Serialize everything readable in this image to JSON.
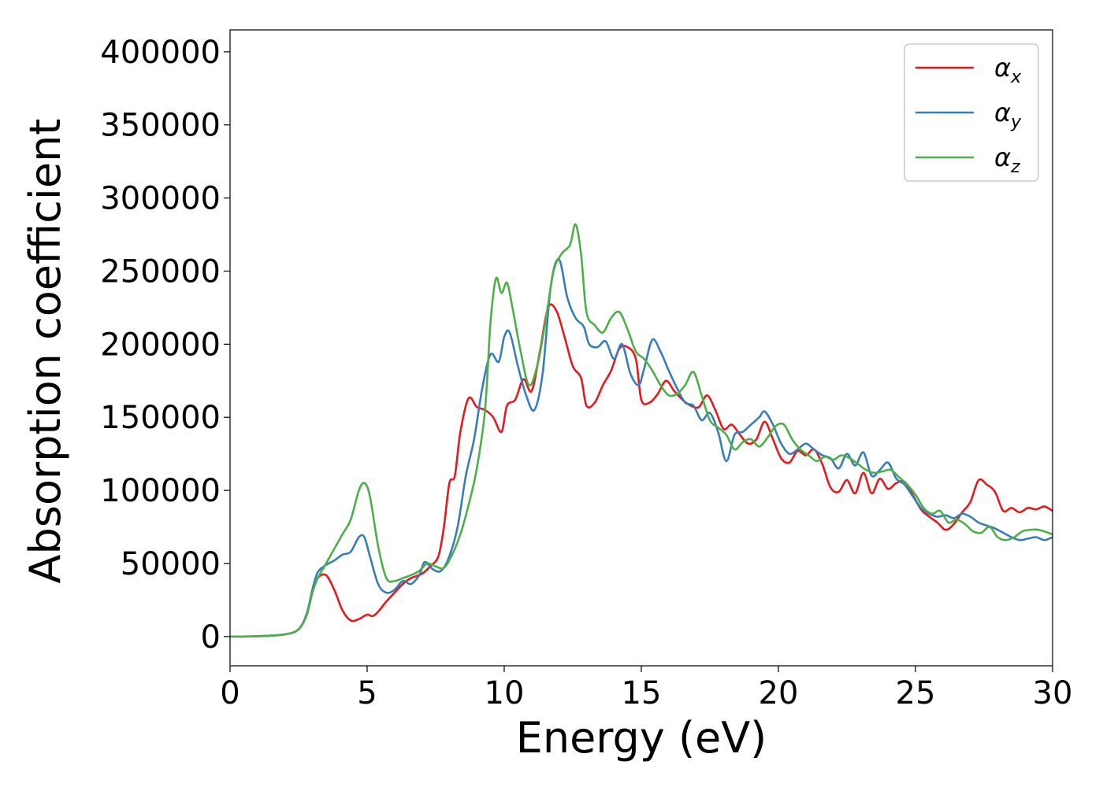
{
  "chart_data": {
    "type": "line",
    "title": "",
    "xlabel": "Energy (eV)",
    "ylabel": "Absorption coefficient",
    "xlim": [
      0,
      30
    ],
    "ylim": [
      -20000,
      415000
    ],
    "xticks": [
      0,
      5,
      10,
      15,
      20,
      25,
      30
    ],
    "yticks": [
      0,
      50000,
      100000,
      150000,
      200000,
      250000,
      300000,
      350000,
      400000
    ],
    "grid": false,
    "legend_position": "top-right",
    "series": [
      {
        "name": "α_x",
        "label_base": "α",
        "label_sub": "x",
        "color": "#e41a1c",
        "x": [
          0,
          1,
          2,
          2.5,
          2.8,
          3.0,
          3.2,
          3.5,
          3.8,
          4.1,
          4.4,
          4.7,
          5.0,
          5.2,
          5.4,
          5.7,
          6.0,
          6.3,
          6.6,
          7.0,
          7.3,
          7.6,
          7.8,
          8.0,
          8.2,
          8.4,
          8.7,
          9.0,
          9.3,
          9.6,
          9.9,
          10.1,
          10.4,
          10.7,
          11.0,
          11.3,
          11.6,
          11.9,
          12.2,
          12.5,
          12.8,
          13.0,
          13.3,
          13.6,
          13.9,
          14.2,
          14.5,
          14.8,
          15.0,
          15.3,
          15.6,
          15.9,
          16.2,
          16.5,
          16.8,
          17.1,
          17.4,
          17.7,
          18.0,
          18.3,
          18.6,
          18.9,
          19.2,
          19.5,
          19.8,
          20.1,
          20.4,
          20.7,
          21.0,
          21.3,
          21.6,
          21.9,
          22.2,
          22.5,
          22.8,
          23.1,
          23.4,
          23.7,
          24.0,
          24.3,
          24.6,
          24.9,
          25.2,
          25.5,
          25.8,
          26.1,
          26.4,
          26.7,
          27.0,
          27.3,
          27.6,
          27.9,
          28.2,
          28.5,
          28.8,
          29.1,
          29.4,
          29.7,
          30.0
        ],
        "y": [
          0,
          200,
          1500,
          5000,
          15000,
          30000,
          40000,
          42000,
          32000,
          18000,
          11000,
          12000,
          15000,
          14000,
          17000,
          24000,
          30000,
          36000,
          40000,
          43000,
          48000,
          55000,
          75000,
          105000,
          110000,
          140000,
          163000,
          157000,
          155000,
          150000,
          140000,
          158000,
          162000,
          176000,
          168000,
          195000,
          225000,
          223000,
          205000,
          185000,
          177000,
          158000,
          160000,
          172000,
          182000,
          197000,
          198000,
          190000,
          162000,
          160000,
          166000,
          175000,
          168000,
          162000,
          158000,
          157000,
          165000,
          155000,
          142000,
          145000,
          138000,
          132000,
          135000,
          147000,
          135000,
          122000,
          119000,
          127000,
          124000,
          128000,
          118000,
          102000,
          99000,
          107000,
          98000,
          112000,
          98000,
          108000,
          101000,
          105000,
          106000,
          97000,
          87000,
          82000,
          78000,
          73000,
          77000,
          85000,
          92000,
          107000,
          104000,
          99000,
          86000,
          88000,
          85000,
          88000,
          87000,
          89000,
          86000
        ]
      },
      {
        "name": "α_y",
        "label_base": "α",
        "label_sub": "y",
        "color": "#377eb8",
        "x": [
          0,
          1,
          2,
          2.5,
          2.8,
          3.0,
          3.2,
          3.5,
          3.8,
          4.1,
          4.4,
          4.7,
          4.9,
          5.1,
          5.4,
          5.7,
          6.0,
          6.3,
          6.6,
          6.9,
          7.1,
          7.4,
          7.7,
          8.0,
          8.3,
          8.6,
          8.9,
          9.2,
          9.5,
          9.8,
          10.0,
          10.2,
          10.5,
          10.8,
          11.1,
          11.4,
          11.7,
          12.0,
          12.3,
          12.6,
          12.9,
          13.1,
          13.4,
          13.7,
          14.0,
          14.3,
          14.6,
          14.9,
          15.1,
          15.4,
          15.7,
          16.0,
          16.3,
          16.6,
          16.9,
          17.2,
          17.5,
          17.8,
          18.1,
          18.4,
          18.7,
          19.0,
          19.3,
          19.5,
          19.8,
          20.1,
          20.4,
          20.7,
          21.0,
          21.3,
          21.6,
          21.9,
          22.2,
          22.5,
          22.8,
          23.1,
          23.4,
          23.7,
          24.0,
          24.3,
          24.6,
          24.9,
          25.2,
          25.5,
          25.8,
          26.1,
          26.4,
          26.7,
          27.0,
          27.3,
          27.6,
          27.9,
          28.2,
          28.5,
          28.8,
          29.1,
          29.4,
          29.7,
          30.0
        ],
        "y": [
          0,
          200,
          1500,
          5000,
          16000,
          32000,
          44000,
          49000,
          52000,
          56000,
          58000,
          68000,
          68000,
          55000,
          36000,
          30000,
          32000,
          38000,
          36000,
          42000,
          51000,
          46000,
          45000,
          55000,
          75000,
          110000,
          135000,
          170000,
          193000,
          188000,
          205000,
          208000,
          185000,
          165000,
          155000,
          180000,
          240000,
          258000,
          232000,
          218000,
          212000,
          200000,
          198000,
          202000,
          190000,
          200000,
          180000,
          172000,
          183000,
          203000,
          195000,
          182000,
          170000,
          160000,
          158000,
          148000,
          153000,
          140000,
          120000,
          138000,
          140000,
          145000,
          150000,
          154000,
          145000,
          132000,
          125000,
          128000,
          132000,
          128000,
          124000,
          122000,
          115000,
          125000,
          117000,
          126000,
          110000,
          114000,
          119000,
          108000,
          104000,
          96000,
          88000,
          84000,
          82000,
          83000,
          81000,
          84000,
          82000,
          78000,
          76000,
          74000,
          71000,
          68000,
          66000,
          67000,
          68000,
          66000,
          68000
        ]
      },
      {
        "name": "α_z",
        "label_base": "α",
        "label_sub": "z",
        "color": "#4daf4a",
        "x": [
          0,
          1,
          2,
          2.5,
          2.8,
          3.0,
          3.2,
          3.5,
          3.8,
          4.1,
          4.4,
          4.7,
          4.9,
          5.1,
          5.4,
          5.7,
          6.0,
          6.3,
          6.6,
          6.9,
          7.2,
          7.5,
          7.8,
          8.1,
          8.4,
          8.7,
          9.0,
          9.3,
          9.5,
          9.7,
          9.9,
          10.1,
          10.3,
          10.6,
          10.9,
          11.2,
          11.5,
          11.8,
          12.1,
          12.4,
          12.6,
          12.8,
          13.0,
          13.3,
          13.6,
          13.9,
          14.2,
          14.5,
          14.8,
          15.1,
          15.4,
          15.7,
          16.0,
          16.3,
          16.6,
          16.9,
          17.2,
          17.5,
          17.8,
          18.1,
          18.4,
          18.7,
          19.0,
          19.3,
          19.6,
          19.9,
          20.2,
          20.5,
          20.8,
          21.1,
          21.4,
          21.7,
          22.0,
          22.3,
          22.6,
          22.9,
          23.2,
          23.5,
          23.8,
          24.1,
          24.4,
          24.7,
          25.0,
          25.3,
          25.6,
          25.9,
          26.2,
          26.5,
          26.8,
          27.1,
          27.4,
          27.7,
          28.0,
          28.3,
          28.6,
          28.9,
          29.2,
          29.5,
          30.0
        ],
        "y": [
          0,
          200,
          1500,
          5000,
          15000,
          30000,
          40000,
          50000,
          60000,
          70000,
          80000,
          100000,
          105000,
          96000,
          62000,
          40000,
          38000,
          40000,
          42000,
          45000,
          50000,
          48000,
          47000,
          56000,
          70000,
          90000,
          115000,
          155000,
          215000,
          245000,
          235000,
          242000,
          225000,
          195000,
          172000,
          185000,
          215000,
          250000,
          262000,
          268000,
          282000,
          262000,
          222000,
          213000,
          208000,
          218000,
          222000,
          210000,
          195000,
          190000,
          182000,
          172000,
          165000,
          166000,
          172000,
          181000,
          165000,
          148000,
          143000,
          138000,
          128000,
          133000,
          135000,
          130000,
          136000,
          144000,
          145000,
          135000,
          128000,
          124000,
          120000,
          123000,
          121000,
          124000,
          122000,
          118000,
          114000,
          112000,
          113000,
          114000,
          109000,
          104000,
          97000,
          88000,
          84000,
          86000,
          78000,
          80000,
          77000,
          72000,
          71000,
          75000,
          68000,
          66000,
          68000,
          72000,
          73000,
          73000,
          70000
        ]
      }
    ]
  }
}
